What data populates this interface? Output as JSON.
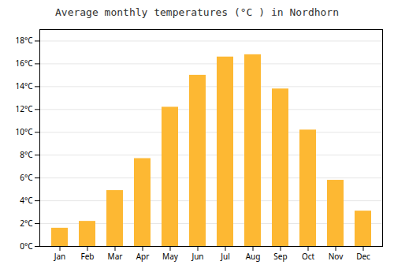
{
  "chart_data": {
    "type": "bar",
    "title": "Average monthly temperatures (°C ) in Nordhorn",
    "categories": [
      "Jan",
      "Feb",
      "Mar",
      "Apr",
      "May",
      "Jun",
      "Jul",
      "Aug",
      "Sep",
      "Oct",
      "Nov",
      "Dec"
    ],
    "values": [
      1.6,
      2.2,
      4.9,
      7.7,
      12.2,
      15.0,
      16.6,
      16.8,
      13.8,
      10.2,
      5.8,
      3.1
    ],
    "color": "#FDB833",
    "ylim": [
      0,
      19
    ],
    "yticks": [
      {
        "value": 0,
        "label": "0°C"
      },
      {
        "value": 2,
        "label": "2°C"
      },
      {
        "value": 4,
        "label": "4°C"
      },
      {
        "value": 6,
        "label": "6°C"
      },
      {
        "value": 8,
        "label": "8°C"
      },
      {
        "value": 10,
        "label": "10°C"
      },
      {
        "value": 12,
        "label": "12°C"
      },
      {
        "value": 14,
        "label": "14°C"
      },
      {
        "value": 16,
        "label": "16°C"
      },
      {
        "value": 18,
        "label": "18°C"
      }
    ],
    "grid": true
  }
}
